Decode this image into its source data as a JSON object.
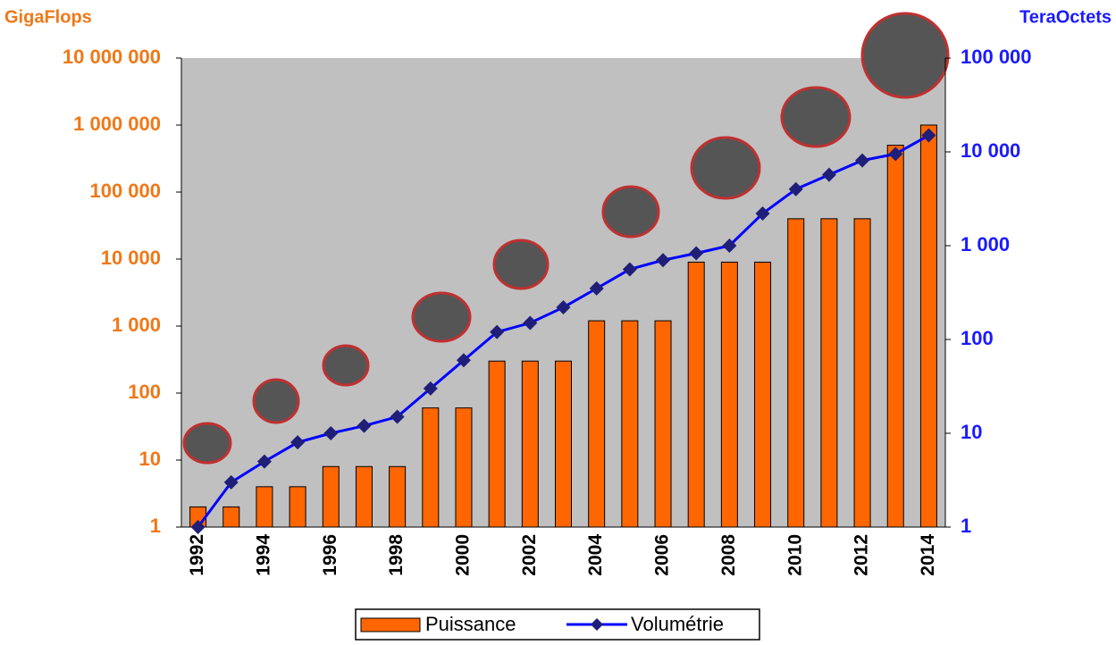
{
  "chart_data": {
    "type": "bar-line",
    "y_axis_label": "GigaFlops",
    "y2_axis_label": "TeraOctets",
    "categories": [
      "1992",
      null,
      "1994",
      null,
      "1996",
      null,
      "1998",
      null,
      "2000",
      null,
      "2002",
      null,
      "2004",
      null,
      "2006",
      null,
      "2008",
      null,
      "2010",
      null,
      "2012",
      null,
      "2014"
    ],
    "series": [
      {
        "name": "Puissance",
        "type": "bar",
        "color": "#ff6600",
        "values": [
          2,
          2,
          4,
          4,
          8,
          8,
          8,
          60,
          60,
          300,
          300,
          300,
          1200,
          1200,
          1200,
          9000,
          9000,
          9000,
          40000,
          40000,
          40000,
          500000,
          1000000
        ]
      },
      {
        "name": "Volumétrie",
        "type": "line",
        "axis": "y2",
        "color": "#0000ff",
        "marker_color": "#1f1f7a",
        "values": [
          1,
          3,
          5,
          8,
          10,
          12,
          15,
          30,
          60,
          120,
          150,
          220,
          350,
          560,
          700,
          830,
          1000,
          2200,
          4000,
          5700,
          8100,
          9500,
          15000
        ]
      }
    ],
    "log_scale": true,
    "ylim": [
      1,
      10000000
    ],
    "yticks": [
      1,
      10,
      100,
      {
        "value": 1000,
        "label": "1 000"
      },
      {
        "value": 10000,
        "label": "10 000"
      },
      {
        "value": 100000,
        "label": "100 000"
      },
      {
        "value": 1000000,
        "label": "1 000 000"
      },
      {
        "value": 10000000,
        "label": "10 000 000"
      }
    ],
    "y2lim": [
      1,
      100000
    ],
    "y2ticks": [
      1,
      10,
      100,
      {
        "value": 1000,
        "label": "1 000"
      },
      {
        "value": 10000,
        "label": "10 000"
      },
      {
        "value": 100000,
        "label": "100 000"
      }
    ],
    "y_color": "#f07818",
    "y2_color": "#1a1aff",
    "plot_background": "#c0c0c0",
    "legend": "bottom"
  }
}
